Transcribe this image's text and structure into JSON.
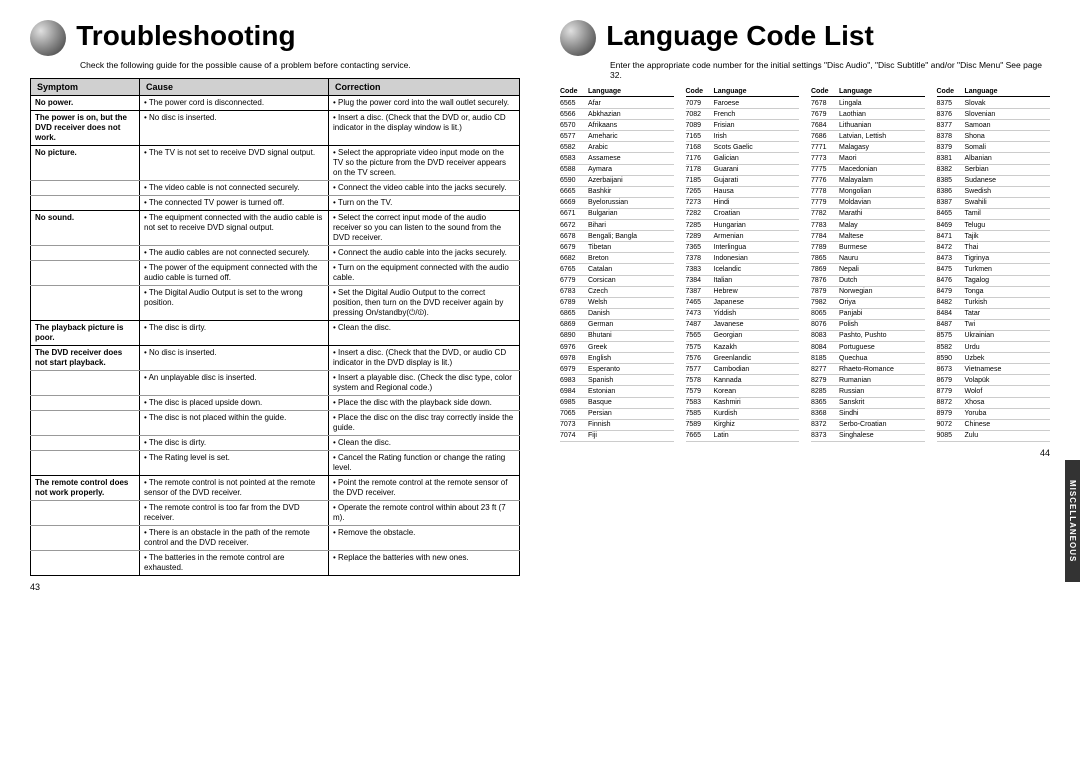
{
  "left": {
    "title": "Troubleshooting",
    "intro": "Check the following guide for the possible cause of a problem before contacting service.",
    "headers": {
      "symptom": "Symptom",
      "cause": "Cause",
      "correction": "Correction"
    },
    "pagenum": "43",
    "rows": [
      {
        "s": "No power.",
        "c": "• The power cord is disconnected.",
        "f": "• Plug the power cord into the wall outlet securely.",
        "end": true
      },
      {
        "s": "The power is on, but the DVD receiver does not work.",
        "c": "• No disc is inserted.",
        "f": "• Insert a disc. (Check that the DVD or, audio CD indicator in the display window is lit.)",
        "end": true
      },
      {
        "s": "No picture.",
        "c": "• The TV is not set to receive DVD signal output.",
        "f": "• Select the appropriate video input mode on the TV so the picture from the DVD receiver appears on the TV screen."
      },
      {
        "s": "",
        "c": "• The video cable is not connected securely.",
        "f": "• Connect the video cable into the jacks securely."
      },
      {
        "s": "",
        "c": "• The connected TV power is turned off.",
        "f": "• Turn on the TV.",
        "end": true
      },
      {
        "s": "No sound.",
        "c": "• The equipment connected with the audio cable is not set to receive DVD signal output.",
        "f": "• Select the correct input mode of the audio receiver so you can listen to the sound from the DVD receiver."
      },
      {
        "s": "",
        "c": "• The audio cables are not connected securely.",
        "f": "• Connect the audio cable into the jacks securely."
      },
      {
        "s": "",
        "c": "• The power of the equipment connected with the audio cable is turned off.",
        "f": "• Turn on the equipment connected with the audio cable."
      },
      {
        "s": "",
        "c": "• The Digital Audio Output is set to the wrong position.",
        "f": "• Set the Digital Audio Output to the correct position, then turn on the DVD receiver again by pressing On/standby(⏻/⏼).",
        "end": true
      },
      {
        "s": "The playback picture is poor.",
        "c": "• The disc is dirty.",
        "f": "• Clean the disc.",
        "end": true
      },
      {
        "s": "The DVD receiver does not start playback.",
        "c": "• No disc is inserted.",
        "f": "• Insert a disc. (Check that the DVD, or audio CD indicator in the DVD display is lit.)"
      },
      {
        "s": "",
        "c": "• An unplayable disc is inserted.",
        "f": "• Insert a playable disc. (Check the disc type, color system and Regional code.)"
      },
      {
        "s": "",
        "c": "• The disc is placed upside down.",
        "f": "• Place the disc with the playback side down."
      },
      {
        "s": "",
        "c": "• The disc is not placed within the guide.",
        "f": "• Place the disc on the disc tray correctly inside the guide."
      },
      {
        "s": "",
        "c": "• The disc is dirty.",
        "f": "• Clean the disc."
      },
      {
        "s": "",
        "c": "• The Rating level is set.",
        "f": "• Cancel the Rating function or change the rating level.",
        "end": true
      },
      {
        "s": "The remote control does not work properly.",
        "c": "• The remote control is not pointed at the remote sensor of the DVD receiver.",
        "f": "• Point the remote control at the remote sensor of the DVD receiver."
      },
      {
        "s": "",
        "c": "• The remote control is too far from the DVD receiver.",
        "f": "• Operate the remote control within about 23 ft (7 m)."
      },
      {
        "s": "",
        "c": "• There is an obstacle in the path of the remote control and the DVD receiver.",
        "f": "• Remove the obstacle."
      },
      {
        "s": "",
        "c": "• The batteries in the remote control are exhausted.",
        "f": "• Replace the batteries with new ones.",
        "end": true
      }
    ]
  },
  "right": {
    "title": "Language Code List",
    "intro": "Enter the appropriate code number for the initial settings \"Disc Audio\", \"Disc Subtitle\" and/or \"Disc Menu\"  See page 32.",
    "colhead": {
      "code": "Code",
      "lang": "Language"
    },
    "pagenum": "44",
    "sidetab": "MISCELLANEOUS",
    "cols": [
      [
        [
          "6565",
          "Afar"
        ],
        [
          "6566",
          "Abkhazian"
        ],
        [
          "6570",
          "Afrikaans"
        ],
        [
          "6577",
          "Ameharic"
        ],
        [
          "6582",
          "Arabic"
        ],
        [
          "6583",
          "Assamese"
        ],
        [
          "6588",
          "Aymara"
        ],
        [
          "6590",
          "Azerbaijani"
        ],
        [
          "6665",
          "Bashkir"
        ],
        [
          "6669",
          "Byelorussian"
        ],
        [
          "6671",
          "Bulgarian"
        ],
        [
          "6672",
          "Bihari"
        ],
        [
          "6678",
          "Bengali; Bangla"
        ],
        [
          "6679",
          "Tibetan"
        ],
        [
          "6682",
          "Breton"
        ],
        [
          "6765",
          "Catalan"
        ],
        [
          "6779",
          "Corsican"
        ],
        [
          "6783",
          "Czech"
        ],
        [
          "6789",
          "Welsh"
        ],
        [
          "6865",
          "Danish"
        ],
        [
          "6869",
          "German"
        ],
        [
          "6890",
          "Bhutani"
        ],
        [
          "6976",
          "Greek"
        ],
        [
          "6978",
          "English"
        ],
        [
          "6979",
          "Esperanto"
        ],
        [
          "6983",
          "Spanish"
        ],
        [
          "6984",
          "Estonian"
        ],
        [
          "6985",
          "Basque"
        ],
        [
          "7065",
          "Persian"
        ],
        [
          "7073",
          "Finnish"
        ],
        [
          "7074",
          "Fiji"
        ]
      ],
      [
        [
          "7079",
          "Faroese"
        ],
        [
          "7082",
          "French"
        ],
        [
          "7089",
          "Frisian"
        ],
        [
          "7165",
          "Irish"
        ],
        [
          "7168",
          "Scots Gaelic"
        ],
        [
          "7176",
          "Galician"
        ],
        [
          "7178",
          "Guarani"
        ],
        [
          "7185",
          "Gujarati"
        ],
        [
          "7265",
          "Hausa"
        ],
        [
          "7273",
          "Hindi"
        ],
        [
          "7282",
          "Croatian"
        ],
        [
          "7285",
          "Hungarian"
        ],
        [
          "7289",
          "Armenian"
        ],
        [
          "7365",
          "Interlingua"
        ],
        [
          "7378",
          "Indonesian"
        ],
        [
          "7383",
          "Icelandic"
        ],
        [
          "7384",
          "Italian"
        ],
        [
          "7387",
          "Hebrew"
        ],
        [
          "7465",
          "Japanese"
        ],
        [
          "7473",
          "Yiddish"
        ],
        [
          "7487",
          "Javanese"
        ],
        [
          "7565",
          "Georgian"
        ],
        [
          "7575",
          "Kazakh"
        ],
        [
          "7576",
          "Greenlandic"
        ],
        [
          "7577",
          "Cambodian"
        ],
        [
          "7578",
          "Kannada"
        ],
        [
          "7579",
          "Korean"
        ],
        [
          "7583",
          "Kashmiri"
        ],
        [
          "7585",
          "Kurdish"
        ],
        [
          "7589",
          "Kirghiz"
        ],
        [
          "7665",
          "Latin"
        ]
      ],
      [
        [
          "7678",
          "Lingala"
        ],
        [
          "7679",
          "Laothian"
        ],
        [
          "7684",
          "Lithuanian"
        ],
        [
          "7686",
          "Latvian, Lettish"
        ],
        [
          "7771",
          "Malagasy"
        ],
        [
          "7773",
          "Maori"
        ],
        [
          "7775",
          "Macedonian"
        ],
        [
          "7776",
          "Malayalam"
        ],
        [
          "7778",
          "Mongolian"
        ],
        [
          "7779",
          "Moldavian"
        ],
        [
          "7782",
          "Marathi"
        ],
        [
          "7783",
          "Malay"
        ],
        [
          "7784",
          "Maltese"
        ],
        [
          "7789",
          "Burmese"
        ],
        [
          "7865",
          "Nauru"
        ],
        [
          "7869",
          "Nepali"
        ],
        [
          "7876",
          "Dutch"
        ],
        [
          "7879",
          "Norwegian"
        ],
        [
          "7982",
          "Oriya"
        ],
        [
          "8065",
          "Panjabi"
        ],
        [
          "8076",
          "Polish"
        ],
        [
          "8083",
          "Pashto, Pushto"
        ],
        [
          "8084",
          "Portuguese"
        ],
        [
          "8185",
          "Quechua"
        ],
        [
          "8277",
          "Rhaeto-Romance"
        ],
        [
          "8279",
          "Rumanian"
        ],
        [
          "8285",
          "Russian"
        ],
        [
          "8365",
          "Sanskrit"
        ],
        [
          "8368",
          "Sindhi"
        ],
        [
          "8372",
          "Serbo-Croatian"
        ],
        [
          "8373",
          "Singhalese"
        ]
      ],
      [
        [
          "8375",
          "Slovak"
        ],
        [
          "8376",
          "Slovenian"
        ],
        [
          "8377",
          "Samoan"
        ],
        [
          "8378",
          "Shona"
        ],
        [
          "8379",
          "Somali"
        ],
        [
          "8381",
          "Albanian"
        ],
        [
          "8382",
          "Serbian"
        ],
        [
          "8385",
          "Sudanese"
        ],
        [
          "8386",
          "Swedish"
        ],
        [
          "8387",
          "Swahili"
        ],
        [
          "8465",
          "Tamil"
        ],
        [
          "8469",
          "Telugu"
        ],
        [
          "8471",
          "Tajik"
        ],
        [
          "8472",
          "Thai"
        ],
        [
          "8473",
          "Tigrinya"
        ],
        [
          "8475",
          "Turkmen"
        ],
        [
          "8476",
          "Tagalog"
        ],
        [
          "8479",
          "Tonga"
        ],
        [
          "8482",
          "Turkish"
        ],
        [
          "8484",
          "Tatar"
        ],
        [
          "8487",
          "Twi"
        ],
        [
          "8575",
          "Ukrainian"
        ],
        [
          "8582",
          "Urdu"
        ],
        [
          "8590",
          "Uzbek"
        ],
        [
          "8673",
          "Vietnamese"
        ],
        [
          "8679",
          "Volapük"
        ],
        [
          "8779",
          "Wolof"
        ],
        [
          "8872",
          "Xhosa"
        ],
        [
          "8979",
          "Yoruba"
        ],
        [
          "9072",
          "Chinese"
        ],
        [
          "9085",
          "Zulu"
        ]
      ]
    ]
  }
}
